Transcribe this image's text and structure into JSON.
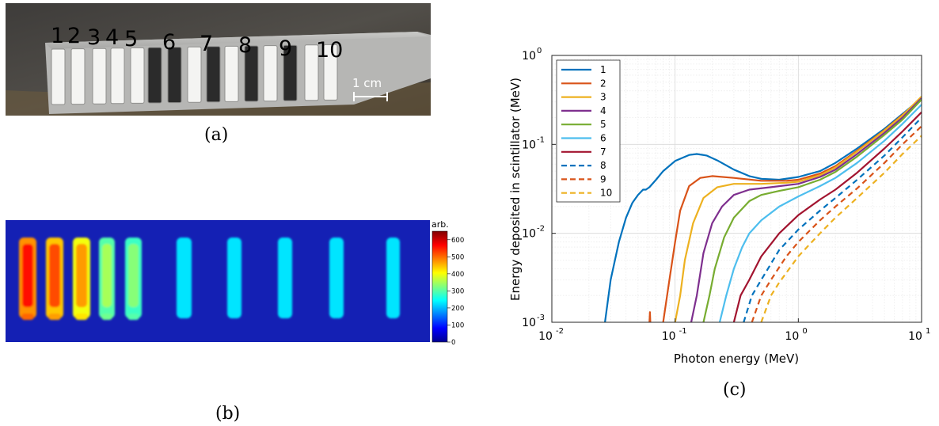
{
  "panel_a": {
    "caption": "(a)",
    "numbers": [
      "1",
      "2",
      "3",
      "4",
      "5",
      "6",
      "7",
      "8",
      "9",
      "10"
    ],
    "scale_label": "1 cm"
  },
  "panel_b": {
    "caption": "(b)",
    "colorbar": {
      "label": "arb.",
      "ticks": [
        "600",
        "500",
        "400",
        "300",
        "200",
        "100",
        "0"
      ]
    },
    "strip_intensity": [
      560,
      520,
      470,
      350,
      330,
      180,
      160,
      150,
      140,
      130
    ]
  },
  "panel_c": {
    "caption": "(c)",
    "chart_data": {
      "type": "line",
      "xlabel": "Photon energy (MeV)",
      "ylabel": "Energy deposited in scintillator (MeV)",
      "xscale": "log",
      "yscale": "log",
      "xlim": [
        0.01,
        10
      ],
      "ylim": [
        0.001,
        1
      ],
      "x_ticks": [
        {
          "value": 0.01,
          "base": "10",
          "exp": "-2"
        },
        {
          "value": 0.1,
          "base": "10",
          "exp": "-1"
        },
        {
          "value": 1,
          "base": "10",
          "exp": "0"
        },
        {
          "value": 10,
          "base": "10",
          "exp": "1"
        }
      ],
      "y_ticks": [
        {
          "value": 0.001,
          "base": "10",
          "exp": "-3"
        },
        {
          "value": 0.01,
          "base": "10",
          "exp": "-2"
        },
        {
          "value": 0.1,
          "base": "10",
          "exp": "-1"
        },
        {
          "value": 1,
          "base": "10",
          "exp": "0"
        }
      ],
      "grid": true,
      "legend_position": "top-left",
      "series": [
        {
          "name": "1",
          "color": "#0072BD",
          "dash": false,
          "points": [
            [
              0.027,
              0.001
            ],
            [
              0.03,
              0.003
            ],
            [
              0.035,
              0.008
            ],
            [
              0.04,
              0.015
            ],
            [
              0.045,
              0.022
            ],
            [
              0.05,
              0.027
            ],
            [
              0.055,
              0.031
            ],
            [
              0.058,
              0.031
            ],
            [
              0.062,
              0.033
            ],
            [
              0.07,
              0.04
            ],
            [
              0.08,
              0.05
            ],
            [
              0.1,
              0.065
            ],
            [
              0.13,
              0.076
            ],
            [
              0.15,
              0.078
            ],
            [
              0.18,
              0.075
            ],
            [
              0.22,
              0.066
            ],
            [
              0.3,
              0.052
            ],
            [
              0.4,
              0.044
            ],
            [
              0.5,
              0.041
            ],
            [
              0.7,
              0.04
            ],
            [
              1.0,
              0.043
            ],
            [
              1.5,
              0.05
            ],
            [
              2.0,
              0.062
            ],
            [
              3.0,
              0.09
            ],
            [
              5.0,
              0.15
            ],
            [
              7.0,
              0.22
            ],
            [
              10.0,
              0.33
            ]
          ]
        },
        {
          "name": "2",
          "color": "#D95319",
          "dash": false,
          "points": [
            [
              0.062,
              0.001
            ],
            [
              0.0625,
              0.0013
            ],
            [
              0.063,
              0.001
            ]
          ],
          "points2": [
            [
              0.08,
              0.001
            ],
            [
              0.09,
              0.003
            ],
            [
              0.1,
              0.008
            ],
            [
              0.11,
              0.018
            ],
            [
              0.13,
              0.034
            ],
            [
              0.16,
              0.042
            ],
            [
              0.2,
              0.044
            ],
            [
              0.3,
              0.042
            ],
            [
              0.5,
              0.039
            ],
            [
              0.8,
              0.039
            ],
            [
              1.0,
              0.04
            ],
            [
              1.5,
              0.047
            ],
            [
              2.0,
              0.057
            ],
            [
              3.0,
              0.085
            ],
            [
              5.0,
              0.145
            ],
            [
              7.0,
              0.215
            ],
            [
              10.0,
              0.33
            ]
          ]
        },
        {
          "name": "3",
          "color": "#EDB120",
          "dash": false,
          "points": [
            [
              0.1,
              0.001
            ],
            [
              0.11,
              0.002
            ],
            [
              0.12,
              0.005
            ],
            [
              0.14,
              0.013
            ],
            [
              0.17,
              0.025
            ],
            [
              0.22,
              0.033
            ],
            [
              0.3,
              0.036
            ],
            [
              0.5,
              0.036
            ],
            [
              0.8,
              0.037
            ],
            [
              1.0,
              0.038
            ],
            [
              1.5,
              0.045
            ],
            [
              2.0,
              0.055
            ],
            [
              3.0,
              0.083
            ],
            [
              5.0,
              0.143
            ],
            [
              7.0,
              0.212
            ],
            [
              10.0,
              0.345
            ]
          ]
        },
        {
          "name": "4",
          "color": "#7E2F8E",
          "dash": false,
          "points": [
            [
              0.135,
              0.001
            ],
            [
              0.15,
              0.002
            ],
            [
              0.17,
              0.006
            ],
            [
              0.2,
              0.013
            ],
            [
              0.24,
              0.02
            ],
            [
              0.3,
              0.027
            ],
            [
              0.4,
              0.031
            ],
            [
              0.6,
              0.033
            ],
            [
              1.0,
              0.036
            ],
            [
              1.5,
              0.043
            ],
            [
              2.0,
              0.052
            ],
            [
              3.0,
              0.078
            ],
            [
              5.0,
              0.135
            ],
            [
              7.0,
              0.2
            ],
            [
              10.0,
              0.33
            ]
          ]
        },
        {
          "name": "5",
          "color": "#77AC30",
          "dash": false,
          "points": [
            [
              0.17,
              0.001
            ],
            [
              0.19,
              0.002
            ],
            [
              0.21,
              0.004
            ],
            [
              0.25,
              0.009
            ],
            [
              0.3,
              0.015
            ],
            [
              0.4,
              0.023
            ],
            [
              0.5,
              0.027
            ],
            [
              0.7,
              0.03
            ],
            [
              1.0,
              0.033
            ],
            [
              1.5,
              0.04
            ],
            [
              2.0,
              0.049
            ],
            [
              3.0,
              0.073
            ],
            [
              5.0,
              0.128
            ],
            [
              7.0,
              0.19
            ],
            [
              10.0,
              0.32
            ]
          ]
        },
        {
          "name": "6",
          "color": "#4DBEEE",
          "dash": false,
          "points": [
            [
              0.23,
              0.001
            ],
            [
              0.26,
              0.002
            ],
            [
              0.3,
              0.004
            ],
            [
              0.35,
              0.007
            ],
            [
              0.4,
              0.01
            ],
            [
              0.5,
              0.014
            ],
            [
              0.7,
              0.02
            ],
            [
              1.0,
              0.026
            ],
            [
              1.5,
              0.034
            ],
            [
              2.0,
              0.042
            ],
            [
              3.0,
              0.062
            ],
            [
              5.0,
              0.11
            ],
            [
              7.0,
              0.17
            ],
            [
              10.0,
              0.28
            ]
          ]
        },
        {
          "name": "7",
          "color": "#A2142F",
          "dash": false,
          "points": [
            [
              0.3,
              0.001
            ],
            [
              0.34,
              0.002
            ],
            [
              0.4,
              0.003
            ],
            [
              0.5,
              0.0055
            ],
            [
              0.7,
              0.01
            ],
            [
              1.0,
              0.016
            ],
            [
              1.5,
              0.024
            ],
            [
              2.0,
              0.031
            ],
            [
              3.0,
              0.048
            ],
            [
              5.0,
              0.09
            ],
            [
              7.0,
              0.14
            ],
            [
              10.0,
              0.23
            ]
          ]
        },
        {
          "name": "8",
          "color": "#0072BD",
          "dash": true,
          "points": [
            [
              0.36,
              0.001
            ],
            [
              0.42,
              0.002
            ],
            [
              0.5,
              0.003
            ],
            [
              0.7,
              0.0065
            ],
            [
              1.0,
              0.011
            ],
            [
              1.5,
              0.018
            ],
            [
              2.0,
              0.025
            ],
            [
              3.0,
              0.04
            ],
            [
              5.0,
              0.075
            ],
            [
              7.0,
              0.12
            ],
            [
              10.0,
              0.2
            ]
          ]
        },
        {
          "name": "9",
          "color": "#D95319",
          "dash": true,
          "points": [
            [
              0.42,
              0.001
            ],
            [
              0.5,
              0.002
            ],
            [
              0.6,
              0.003
            ],
            [
              0.8,
              0.0055
            ],
            [
              1.0,
              0.008
            ],
            [
              1.5,
              0.014
            ],
            [
              2.0,
              0.02
            ],
            [
              3.0,
              0.032
            ],
            [
              5.0,
              0.062
            ],
            [
              7.0,
              0.1
            ],
            [
              10.0,
              0.16
            ]
          ]
        },
        {
          "name": "10",
          "color": "#EDB120",
          "dash": true,
          "points": [
            [
              0.5,
              0.001
            ],
            [
              0.6,
              0.002
            ],
            [
              0.7,
              0.0028
            ],
            [
              1.0,
              0.0055
            ],
            [
              1.5,
              0.01
            ],
            [
              2.0,
              0.015
            ],
            [
              3.0,
              0.025
            ],
            [
              5.0,
              0.048
            ],
            [
              7.0,
              0.078
            ],
            [
              10.0,
              0.125
            ]
          ]
        }
      ]
    }
  }
}
